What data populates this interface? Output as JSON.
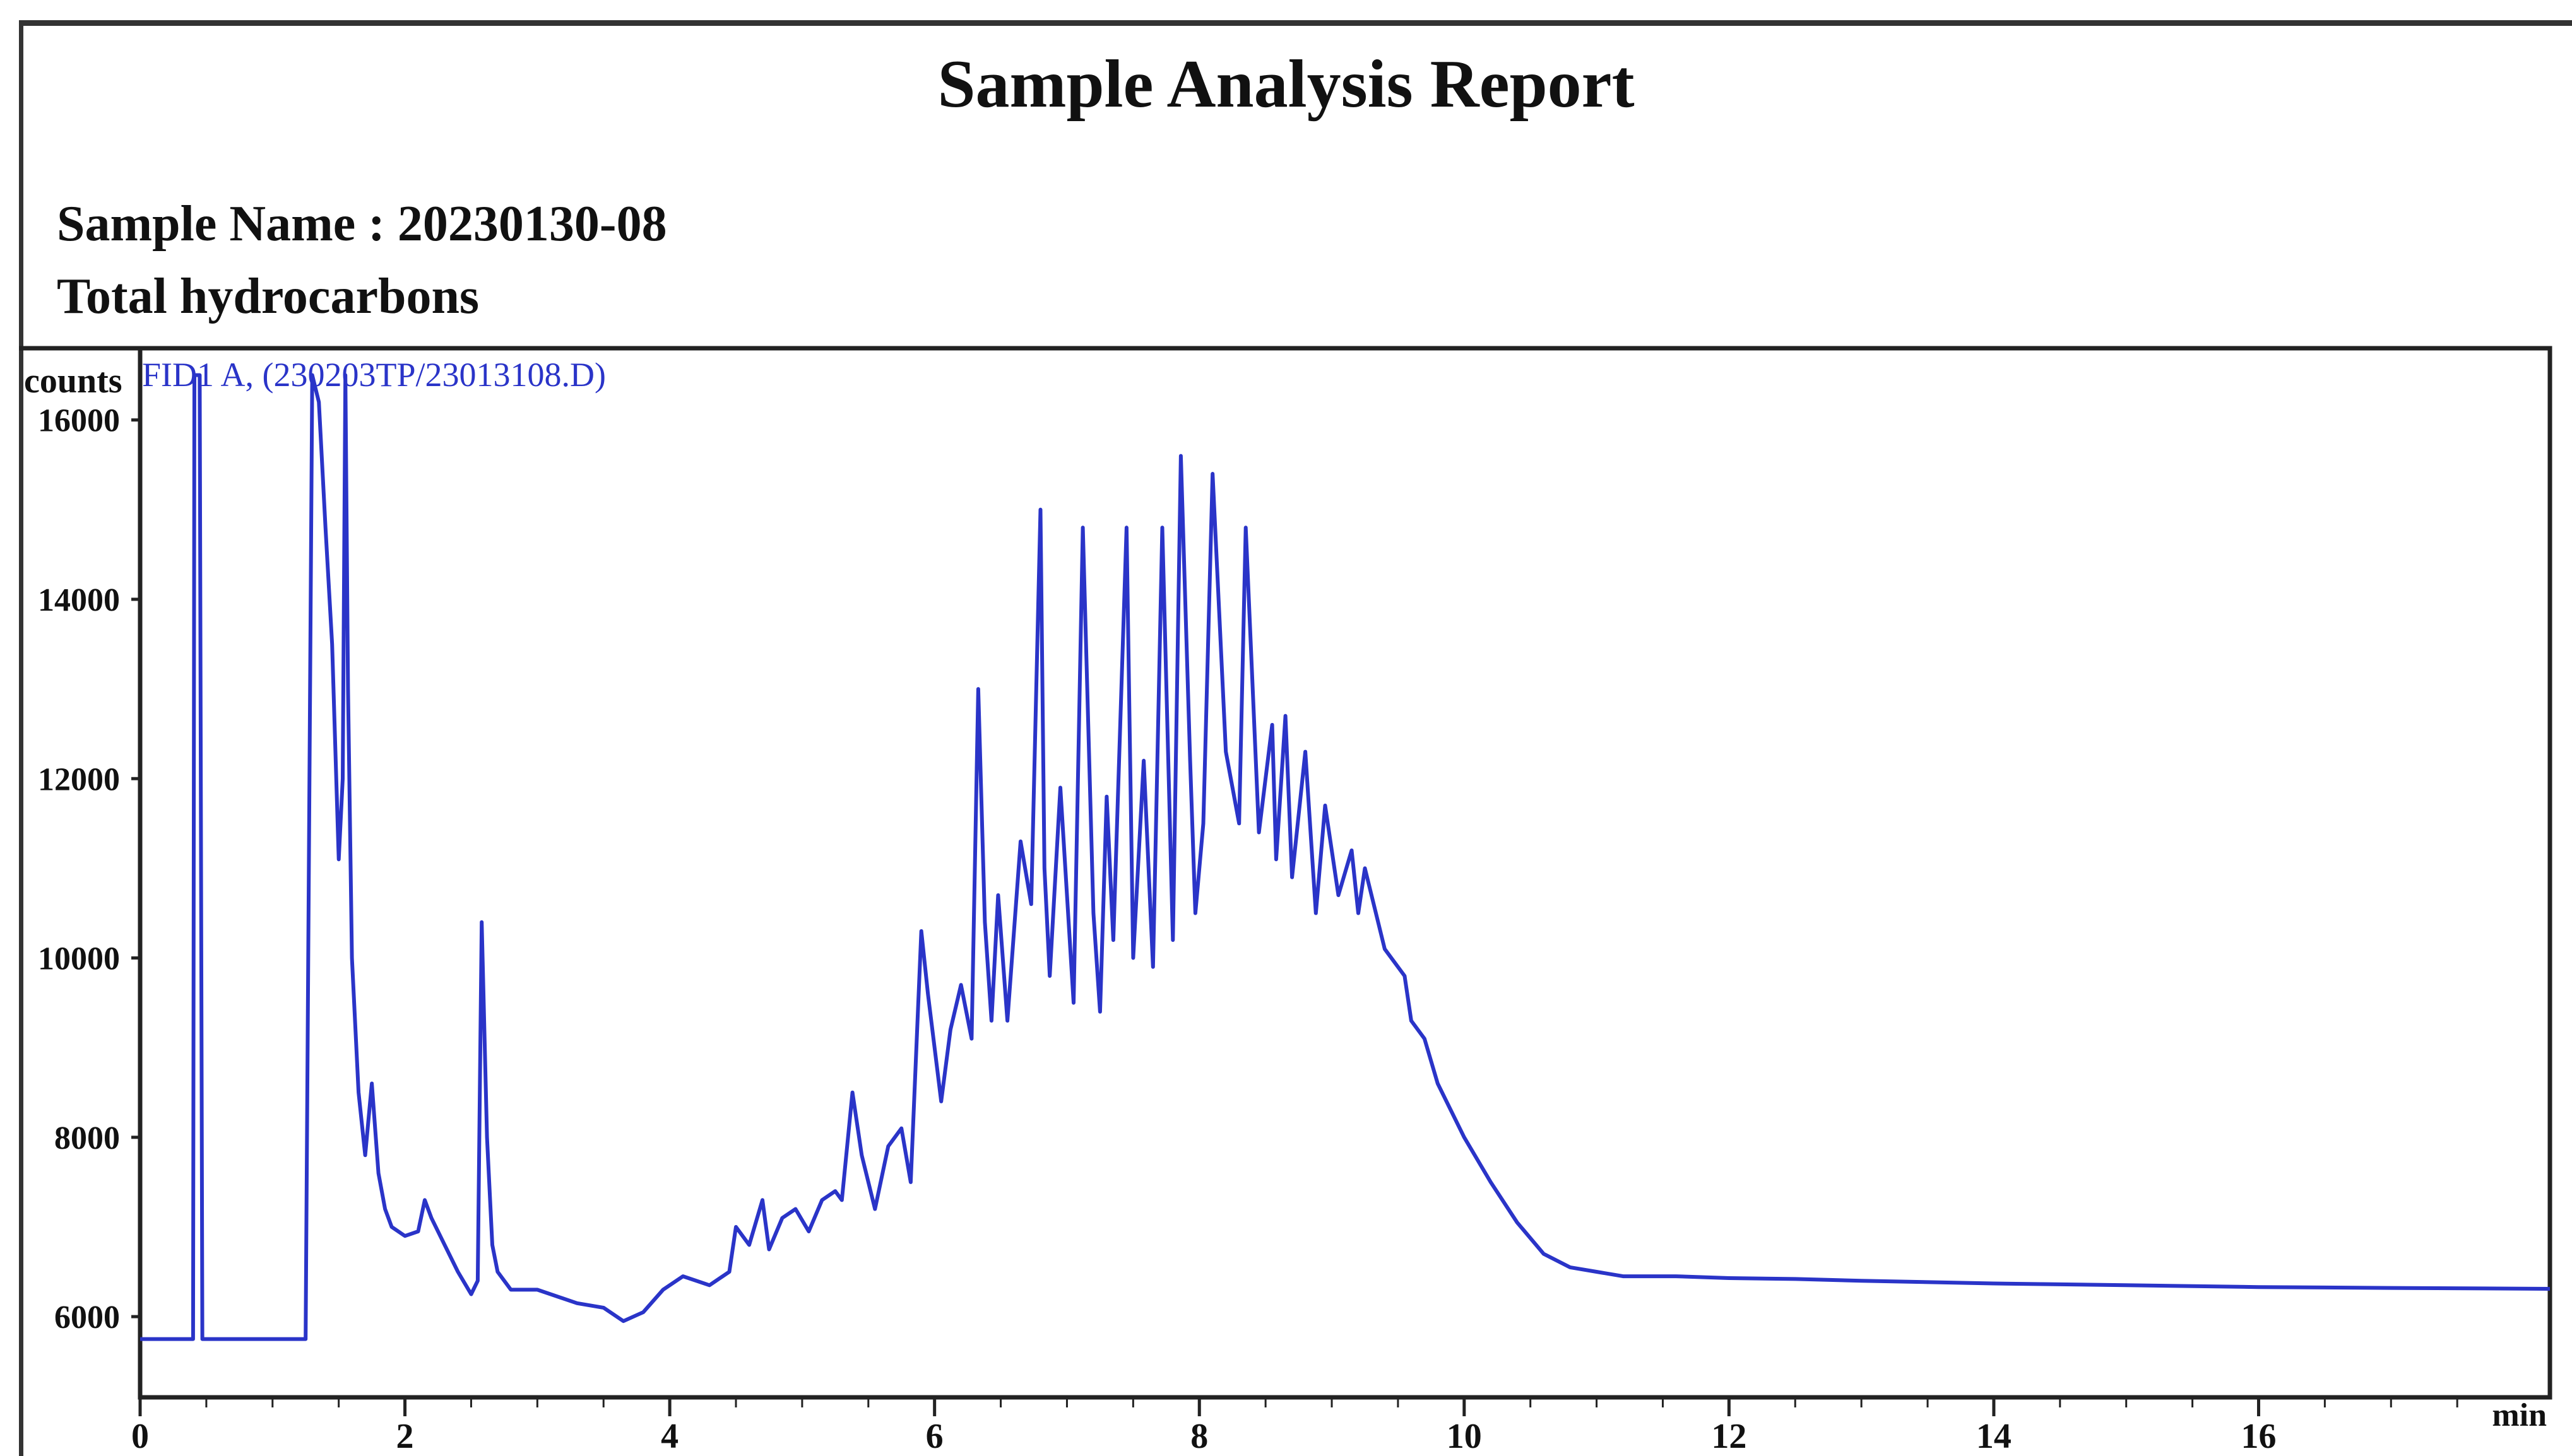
{
  "report": {
    "title": "Sample Analysis Report",
    "sample_line": "Sample Name : 20230130-08",
    "subtitle": "Total hydrocarbons"
  },
  "chart_data": {
    "type": "line",
    "signal_label": "FID1 A, (230203TP/23013108.D)",
    "ylabel": "counts",
    "xlabel": "min",
    "xlim": [
      0,
      18.2
    ],
    "ylim": [
      5100,
      16800
    ],
    "x_ticks": [
      0,
      2,
      4,
      6,
      8,
      10,
      12,
      14,
      16
    ],
    "x_tick_labels": [
      "0",
      "2",
      "4",
      "6",
      "8",
      "10",
      "12",
      "14",
      "16"
    ],
    "y_ticks": [
      6000,
      8000,
      10000,
      12000,
      14000,
      16000
    ],
    "y_tick_labels": [
      "6000",
      "8000",
      "10000",
      "12000",
      "14000",
      "16000"
    ],
    "line_color": "#2a34c8",
    "series": [
      {
        "x": [
          0,
          0.2,
          0.4,
          0.41,
          0.43,
          0.45,
          0.47,
          0.6,
          0.8,
          1.0,
          1.25,
          1.3,
          1.35,
          1.4,
          1.45,
          1.5,
          1.53,
          1.55,
          1.57,
          1.6,
          1.65,
          1.7,
          1.75,
          1.8,
          1.85,
          1.9,
          2.0,
          2.1,
          2.15,
          2.2,
          2.3,
          2.4,
          2.5,
          2.55,
          2.58,
          2.62,
          2.66,
          2.7,
          2.8,
          3.0,
          3.3,
          3.5,
          3.65,
          3.8,
          3.95,
          4.1,
          4.3,
          4.45,
          4.5,
          4.6,
          4.7,
          4.75,
          4.85,
          4.95,
          5.05,
          5.15,
          5.25,
          5.3,
          5.38,
          5.45,
          5.55,
          5.65,
          5.75,
          5.82,
          5.9,
          5.95,
          6.05,
          6.12,
          6.2,
          6.28,
          6.33,
          6.38,
          6.43,
          6.48,
          6.55,
          6.65,
          6.73,
          6.8,
          6.83,
          6.87,
          6.95,
          7.05,
          7.12,
          7.2,
          7.25,
          7.3,
          7.35,
          7.45,
          7.5,
          7.58,
          7.65,
          7.72,
          7.8,
          7.86,
          7.93,
          7.97,
          8.03,
          8.1,
          8.2,
          8.3,
          8.35,
          8.45,
          8.55,
          8.58,
          8.65,
          8.7,
          8.8,
          8.88,
          8.95,
          9.05,
          9.15,
          9.2,
          9.25,
          9.4,
          9.55,
          9.6,
          9.7,
          9.8,
          9.9,
          10.0,
          10.2,
          10.4,
          10.6,
          10.8,
          11.0,
          11.2,
          11.4,
          11.6,
          12.0,
          12.5,
          13.0,
          14.0,
          15.0,
          16.0,
          17.0,
          18.2
        ],
        "y": [
          5750,
          5750,
          5750,
          16500,
          16500,
          16500,
          5750,
          5750,
          5750,
          5750,
          5750,
          16500,
          16200,
          14800,
          13500,
          11100,
          12000,
          16500,
          13000,
          10000,
          8500,
          7800,
          8600,
          7600,
          7200,
          7000,
          6900,
          6950,
          7300,
          7100,
          6800,
          6500,
          6250,
          6400,
          10400,
          8000,
          6800,
          6500,
          6300,
          6300,
          6150,
          6100,
          5950,
          6050,
          6300,
          6450,
          6350,
          6500,
          7000,
          6800,
          7300,
          6750,
          7100,
          7200,
          6950,
          7300,
          7400,
          7300,
          8500,
          7800,
          7200,
          7900,
          8100,
          7500,
          10300,
          9600,
          8400,
          9200,
          9700,
          9100,
          13000,
          10400,
          9300,
          10700,
          9300,
          11300,
          10600,
          15000,
          11000,
          9800,
          11900,
          9500,
          14800,
          10500,
          9400,
          11800,
          10200,
          14800,
          10000,
          12200,
          9900,
          14800,
          10200,
          15600,
          12200,
          10500,
          11500,
          15400,
          12300,
          11500,
          14800,
          11400,
          12600,
          11100,
          12700,
          10900,
          12300,
          10500,
          11700,
          10700,
          11200,
          10500,
          11000,
          10100,
          9800,
          9300,
          9100,
          8600,
          8300,
          8000,
          7500,
          7050,
          6700,
          6550,
          6500,
          6450,
          6450,
          6450,
          6430,
          6420,
          6400,
          6370,
          6350,
          6330,
          6320,
          6310
        ]
      }
    ]
  }
}
